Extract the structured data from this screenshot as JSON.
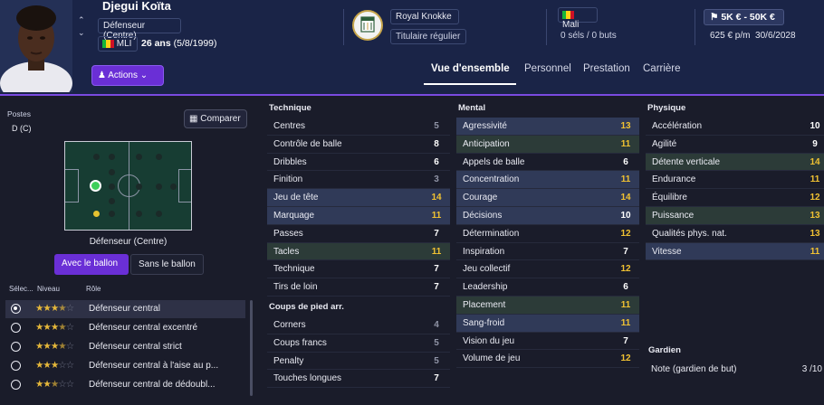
{
  "player": {
    "name": "Djegui Koïta",
    "position": "Défenseur (Centre)",
    "nationality_code": "MLI",
    "age": "26 ans",
    "birth": "(5/8/1999)"
  },
  "club": {
    "name": "Royal Knokke",
    "status": "Titulaire régulier"
  },
  "international": {
    "country": "Mali",
    "caps": "0 séls / 0 buts"
  },
  "value": {
    "range": "5K € - 50K €",
    "wage": "625 € p/m",
    "contract_end": "30/6/2028"
  },
  "colors": {
    "accent": "#6a2fd6",
    "highlight": "#f1c232",
    "pitch": "#173d33"
  },
  "actions_label": "Actions",
  "tabs": [
    "Vue d'ensemble",
    "Personnel",
    "Prestation",
    "Carrière"
  ],
  "left_panel": {
    "positions_label": "Postes",
    "position_code": "D (C)",
    "compare_label": "Comparer",
    "pitch_caption": "Défenseur (Centre)",
    "toggle_on": "Avec le ballon",
    "toggle_off": "Sans le ballon",
    "role_headers": [
      "Sélec...",
      "Niveau",
      "Rôle"
    ],
    "roles": [
      {
        "name": "Défenseur central",
        "stars": 3.5,
        "selected": true
      },
      {
        "name": "Défenseur central excentré",
        "stars": 3.5,
        "selected": false
      },
      {
        "name": "Défenseur central strict",
        "stars": 3.5,
        "selected": false
      },
      {
        "name": "Défenseur central à l'aise au p...",
        "stars": 3,
        "selected": false
      },
      {
        "name": "Défenseur central de dédoubl...",
        "stars": 2.5,
        "selected": false
      }
    ]
  },
  "technique": {
    "title": "Technique",
    "attrs": [
      {
        "name": "Centres",
        "value": 5,
        "style": ""
      },
      {
        "name": "Contrôle de balle",
        "value": 8,
        "style": ""
      },
      {
        "name": "Dribbles",
        "value": 6,
        "style": ""
      },
      {
        "name": "Finition",
        "value": 3,
        "style": ""
      },
      {
        "name": "Jeu de tête",
        "value": 14,
        "style": "hl"
      },
      {
        "name": "Marquage",
        "value": 11,
        "style": "hl"
      },
      {
        "name": "Passes",
        "value": 7,
        "style": ""
      },
      {
        "name": "Tacles",
        "value": 11,
        "style": "gr"
      },
      {
        "name": "Technique",
        "value": 7,
        "style": ""
      },
      {
        "name": "Tirs de loin",
        "value": 7,
        "style": ""
      }
    ]
  },
  "set_pieces": {
    "title": "Coups de pied arr.",
    "attrs": [
      {
        "name": "Corners",
        "value": 4,
        "style": ""
      },
      {
        "name": "Coups francs",
        "value": 5,
        "style": ""
      },
      {
        "name": "Penalty",
        "value": 5,
        "style": ""
      },
      {
        "name": "Touches longues",
        "value": 7,
        "style": ""
      }
    ]
  },
  "mental": {
    "title": "Mental",
    "attrs": [
      {
        "name": "Agressivité",
        "value": 13,
        "style": "hl"
      },
      {
        "name": "Anticipation",
        "value": 11,
        "style": "gr"
      },
      {
        "name": "Appels de balle",
        "value": 6,
        "style": ""
      },
      {
        "name": "Concentration",
        "value": 11,
        "style": "hl"
      },
      {
        "name": "Courage",
        "value": 14,
        "style": "hl"
      },
      {
        "name": "Décisions",
        "value": 10,
        "style": "hl"
      },
      {
        "name": "Détermination",
        "value": 12,
        "style": ""
      },
      {
        "name": "Inspiration",
        "value": 7,
        "style": ""
      },
      {
        "name": "Jeu collectif",
        "value": 12,
        "style": ""
      },
      {
        "name": "Leadership",
        "value": 6,
        "style": ""
      },
      {
        "name": "Placement",
        "value": 11,
        "style": "gr"
      },
      {
        "name": "Sang-froid",
        "value": 11,
        "style": "hl"
      },
      {
        "name": "Vision du jeu",
        "value": 7,
        "style": ""
      },
      {
        "name": "Volume de jeu",
        "value": 12,
        "style": ""
      }
    ]
  },
  "physique": {
    "title": "Physique",
    "attrs": [
      {
        "name": "Accélération",
        "value": 10,
        "style": ""
      },
      {
        "name": "Agilité",
        "value": 9,
        "style": ""
      },
      {
        "name": "Détente verticale",
        "value": 14,
        "style": "gr"
      },
      {
        "name": "Endurance",
        "value": 11,
        "style": ""
      },
      {
        "name": "Équilibre",
        "value": 12,
        "style": ""
      },
      {
        "name": "Puissance",
        "value": 13,
        "style": "gr"
      },
      {
        "name": "Qualités phys. nat.",
        "value": 13,
        "style": ""
      },
      {
        "name": "Vitesse",
        "value": 11,
        "style": "hl"
      }
    ]
  },
  "goalkeeper": {
    "title": "Gardien",
    "note_label": "Note (gardien de but)",
    "note_value": "3 /10"
  }
}
